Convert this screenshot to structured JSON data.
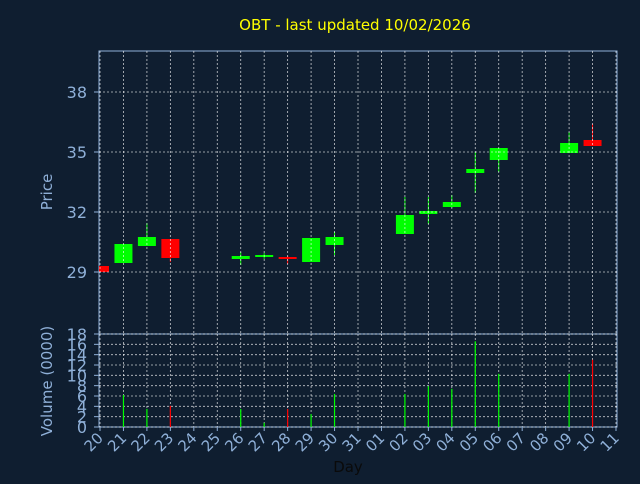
{
  "chart_data": {
    "type": "candlestick",
    "title": "OBT - last updated 10/02/2026",
    "x_label": "Day",
    "y_label": "Price",
    "categories": [
      "20",
      "21",
      "22",
      "23",
      "24",
      "25",
      "26",
      "27",
      "28",
      "29",
      "30",
      "31",
      "01",
      "02",
      "03",
      "04",
      "05",
      "06",
      "07",
      "08",
      "09",
      "10",
      "11"
    ],
    "open": [
      29.3,
      29.45,
      30.3,
      30.65,
      null,
      null,
      29.65,
      29.75,
      29.75,
      29.5,
      30.35,
      null,
      null,
      30.9,
      31.9,
      32.25,
      33.95,
      34.6,
      null,
      null,
      34.95,
      35.6,
      null
    ],
    "high": [
      29.3,
      30.4,
      31.45,
      30.65,
      null,
      null,
      30.0,
      29.95,
      29.8,
      30.7,
      31.0,
      null,
      null,
      32.75,
      32.75,
      32.85,
      35.0,
      35.2,
      null,
      null,
      36.0,
      36.4,
      null
    ],
    "low": [
      29.0,
      29.45,
      30.3,
      29.5,
      null,
      null,
      29.35,
      29.65,
      29.4,
      29.5,
      29.85,
      null,
      null,
      30.9,
      31.4,
      32.2,
      32.95,
      34.0,
      null,
      null,
      34.95,
      35.3,
      null
    ],
    "close": [
      29.0,
      30.4,
      30.75,
      29.7,
      null,
      null,
      29.8,
      29.85,
      29.65,
      30.7,
      30.75,
      null,
      null,
      31.85,
      32.05,
      32.5,
      34.15,
      35.2,
      null,
      null,
      35.45,
      35.3,
      null
    ],
    "up_color": "#00ff00",
    "down_color": "#ff0000",
    "ylim": [
      25.9,
      40.05
    ],
    "yticks": [
      29,
      32,
      35,
      38
    ],
    "grid": true,
    "volume": {
      "label": "Volume (0000)",
      "values": [
        null,
        6.2,
        3.5,
        4.1,
        null,
        null,
        3.5,
        0.8,
        3.5,
        2.5,
        6.4,
        null,
        null,
        6.4,
        7.9,
        7.4,
        16.6,
        10.3,
        null,
        null,
        10.3,
        13.0,
        null
      ],
      "ylim": [
        0,
        18
      ],
      "yticks": [
        0,
        2,
        4,
        6,
        8,
        10,
        12,
        14,
        16,
        18
      ]
    }
  }
}
